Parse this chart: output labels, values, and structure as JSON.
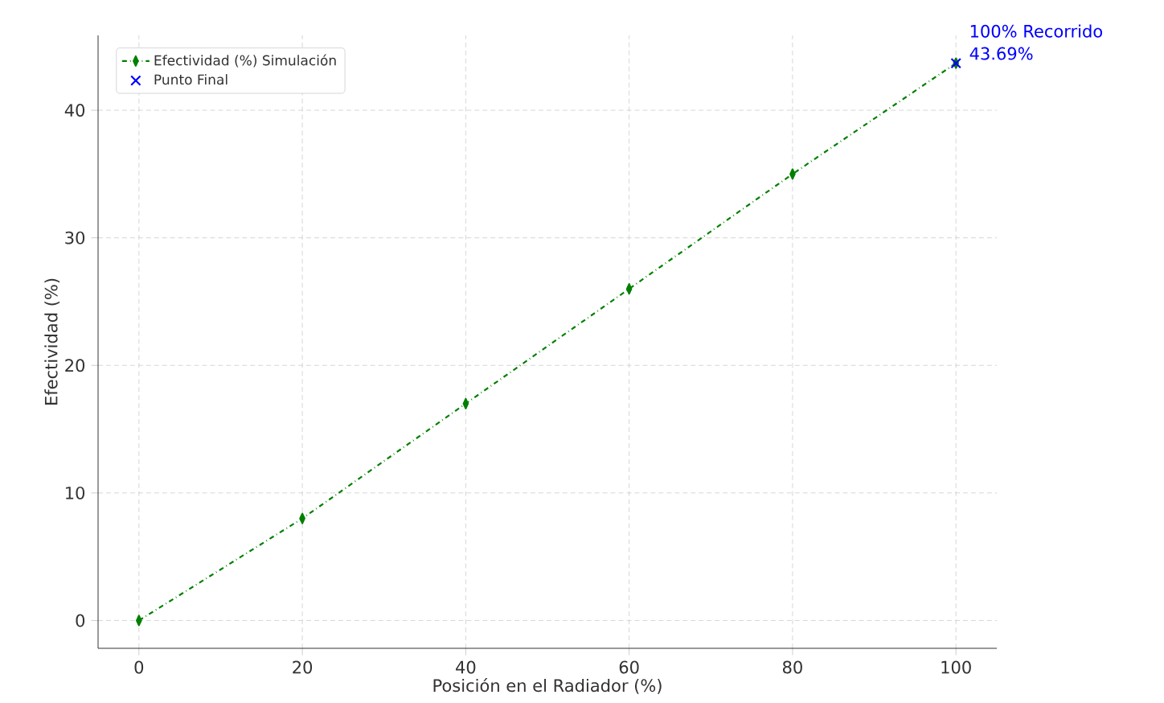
{
  "chart_data": {
    "type": "line",
    "xlabel": "Posición en el Radiador (%)",
    "ylabel": "Efectividad (%)",
    "x": [
      0,
      20,
      40,
      60,
      80,
      100
    ],
    "series": [
      {
        "name": "Efectividad (%) Simulación",
        "color": "#008000",
        "values": [
          0,
          8,
          17,
          26,
          35,
          43.69
        ],
        "marker": "diamond",
        "line_style": "dashdot"
      },
      {
        "name": "Punto Final",
        "type": "scatter",
        "color": "#0000ff",
        "x": [
          100
        ],
        "values": [
          43.69
        ],
        "marker": "cross"
      }
    ],
    "annotations": [
      {
        "text": "100% Recorrido",
        "x": 100,
        "y": 43.69
      },
      {
        "text": "43.69%",
        "x": 100,
        "y": 43.69
      }
    ],
    "xlim": [
      -5,
      105
    ],
    "ylim": [
      -2.18,
      45.87
    ],
    "xticks": [
      0,
      20,
      40,
      60,
      80,
      100
    ],
    "yticks": [
      0,
      10,
      20,
      30,
      40
    ],
    "grid": true,
    "legend": "top left"
  }
}
